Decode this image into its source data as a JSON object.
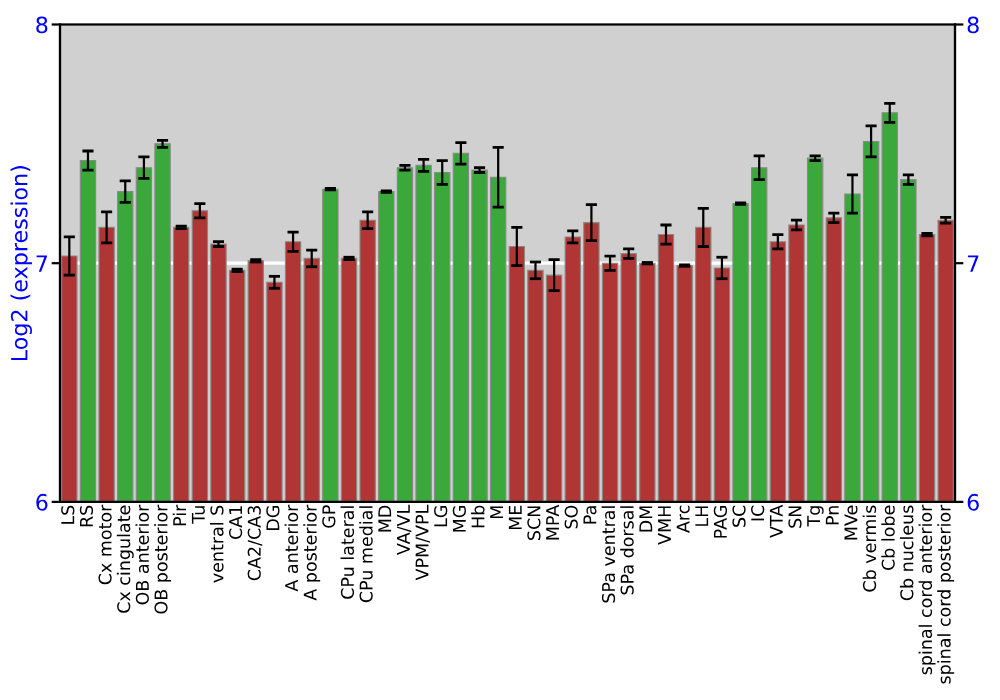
{
  "chart_data": {
    "type": "bar",
    "ylabel": "Log2 (expression)",
    "categories": [
      "LS",
      "RS",
      "Cx motor",
      "Cx cingulate",
      "OB anterior",
      "OB posterior",
      "Pir",
      "Tu",
      "ventral S",
      "CA1",
      "CA2/CA3",
      "DG",
      "A anterior",
      "A posterior",
      "GP",
      "CPu lateral",
      "CPu medial",
      "MD",
      "VA/VL",
      "VPM/VPL",
      "LG",
      "MG",
      "Hb",
      "M",
      "ME",
      "SCN",
      "MPA",
      "SO",
      "Pa",
      "SPa ventral",
      "SPa dorsal",
      "DM",
      "VMH",
      "Arc",
      "LH",
      "PAG",
      "SC",
      "IC",
      "VTA",
      "SN",
      "Tg",
      "Pn",
      "MVe",
      "Cb vermis",
      "Cb lobe",
      "Cb nucleus",
      "spinal cord anterior",
      "spinal cord posterior"
    ],
    "values": [
      7.03,
      7.43,
      7.15,
      7.3,
      7.4,
      7.5,
      7.15,
      7.22,
      7.08,
      6.97,
      7.01,
      6.92,
      7.09,
      7.02,
      7.31,
      7.02,
      7.18,
      7.3,
      7.4,
      7.41,
      7.38,
      7.46,
      7.39,
      7.36,
      7.07,
      6.97,
      6.95,
      7.11,
      7.17,
      7.0,
      7.04,
      7.0,
      7.12,
      6.99,
      7.15,
      6.98,
      7.25,
      7.4,
      7.09,
      7.16,
      7.44,
      7.19,
      7.29,
      7.51,
      7.63,
      7.35,
      7.12,
      7.18
    ],
    "errors": [
      0.08,
      0.04,
      0.065,
      0.045,
      0.045,
      0.015,
      0.005,
      0.03,
      0.01,
      0.005,
      0.005,
      0.025,
      0.04,
      0.035,
      0.003,
      0.005,
      0.035,
      0.003,
      0.01,
      0.025,
      0.05,
      0.045,
      0.01,
      0.125,
      0.08,
      0.035,
      0.065,
      0.025,
      0.075,
      0.03,
      0.02,
      0.003,
      0.04,
      0.003,
      0.08,
      0.045,
      0.003,
      0.05,
      0.03,
      0.02,
      0.01,
      0.02,
      0.08,
      0.065,
      0.04,
      0.02,
      0.005,
      0.012
    ],
    "colors": [
      "#b03535",
      "#3aa83a",
      "#b03535",
      "#3aa83a",
      "#3aa83a",
      "#3aa83a",
      "#b03535",
      "#b03535",
      "#b03535",
      "#b03535",
      "#b03535",
      "#b03535",
      "#b03535",
      "#b03535",
      "#3aa83a",
      "#b03535",
      "#b03535",
      "#3aa83a",
      "#3aa83a",
      "#3aa83a",
      "#3aa83a",
      "#3aa83a",
      "#3aa83a",
      "#3aa83a",
      "#b03535",
      "#b03535",
      "#b03535",
      "#b03535",
      "#b03535",
      "#b03535",
      "#b03535",
      "#b03535",
      "#b03535",
      "#b03535",
      "#b03535",
      "#b03535",
      "#3aa83a",
      "#3aa83a",
      "#b03535",
      "#b03535",
      "#3aa83a",
      "#b03535",
      "#3aa83a",
      "#3aa83a",
      "#3aa83a",
      "#3aa83a",
      "#b03535",
      "#b03535"
    ],
    "ylim": [
      6,
      8
    ],
    "yticks": [
      6,
      7,
      8
    ],
    "y2lim": [
      6,
      8
    ],
    "y2ticks": [
      6,
      7,
      8
    ],
    "ref_lines": [
      {
        "axis": "y",
        "value": 7,
        "color": "#ffffff"
      }
    ]
  }
}
